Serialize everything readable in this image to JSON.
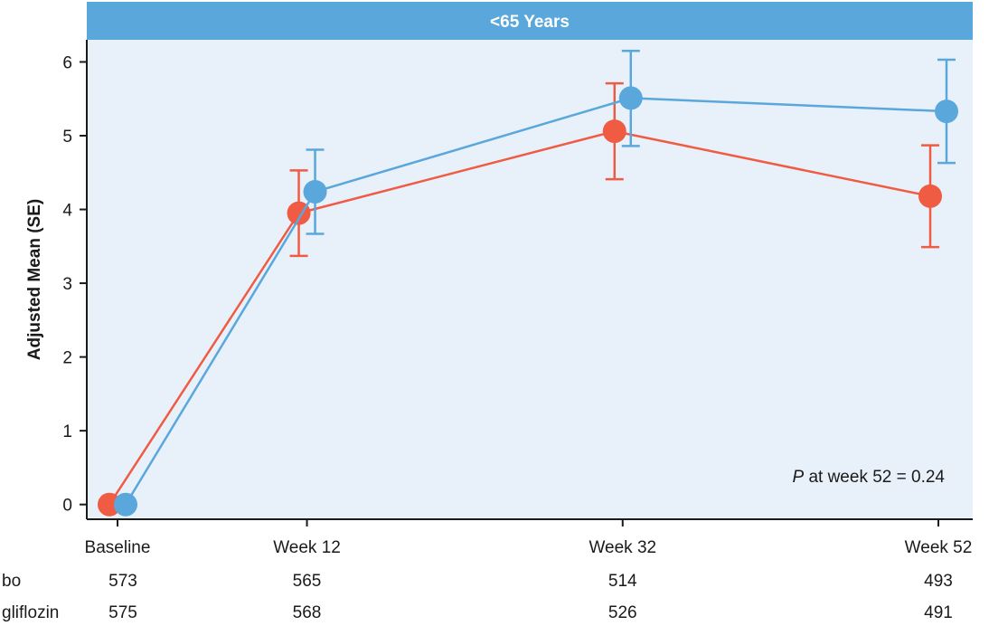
{
  "chart_data": {
    "type": "line",
    "title": "<65 Years",
    "ylabel": "Adjusted Mean (SE)",
    "xlabel": "",
    "ylim": [
      -0.2,
      6.3
    ],
    "yticks": [
      0,
      1,
      2,
      3,
      4,
      5,
      6
    ],
    "categories": [
      "Baseline",
      "Week 12",
      "Week 32",
      "Week 52"
    ],
    "x_weeks": [
      0,
      12,
      32,
      52
    ],
    "series": [
      {
        "color": "#ef5b43",
        "values": [
          0,
          3.95,
          5.06,
          4.18
        ],
        "se_lower": [
          0,
          3.37,
          4.41,
          3.49
        ],
        "se_upper": [
          0,
          4.53,
          5.71,
          4.87
        ],
        "counts_label": "bo",
        "counts": [
          "573",
          "565",
          "514",
          "493"
        ]
      },
      {
        "color": "#5aa7db",
        "values": [
          0,
          4.24,
          5.51,
          5.33
        ],
        "se_lower": [
          0,
          3.67,
          4.86,
          4.63
        ],
        "se_upper": [
          0,
          4.81,
          6.15,
          6.03
        ],
        "counts_label": "gliflozin",
        "counts": [
          "575",
          "568",
          "526",
          "491"
        ]
      }
    ],
    "annotation": {
      "italic": "P",
      "text": " at week 52 = 0.24"
    },
    "colors": {
      "panel_bg": "#e8f1fa",
      "title_bar": "#5aa7db",
      "axis": "#1a1a1a"
    },
    "grid": false
  }
}
